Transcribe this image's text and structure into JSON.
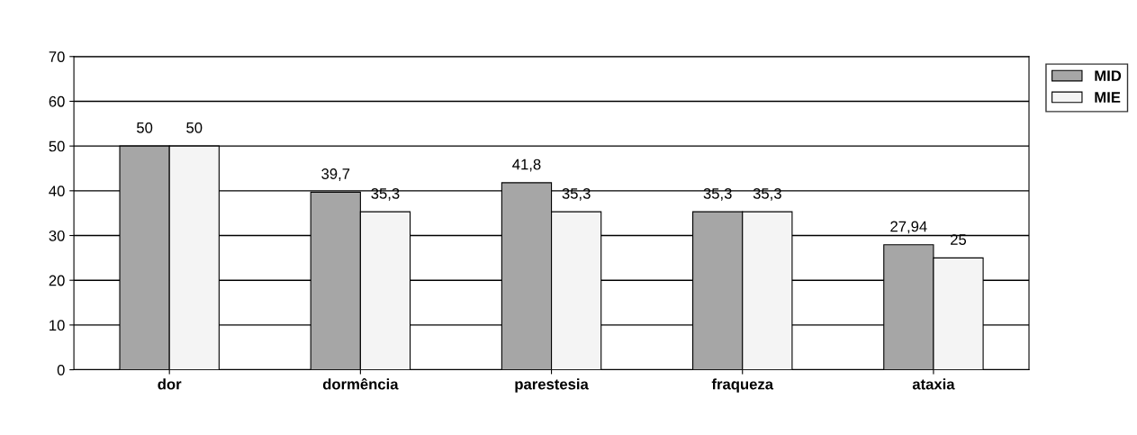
{
  "chart_data": {
    "type": "bar",
    "categories": [
      "dor",
      "dormência",
      "parestesia",
      "fraqueza",
      "ataxia"
    ],
    "series": [
      {
        "name": "MID",
        "color": "#a6a6a6",
        "values": [
          50,
          39.7,
          41.8,
          35.3,
          27.94
        ],
        "value_labels": [
          "50",
          "39,7",
          "41,8",
          "35,3",
          "27,94"
        ]
      },
      {
        "name": "MIE",
        "color": "#f4f4f4",
        "values": [
          50,
          35.3,
          35.3,
          35.3,
          25
        ],
        "value_labels": [
          "50",
          "35,3",
          "35,3",
          "35,3",
          "25"
        ]
      }
    ],
    "ylim": [
      0,
      70
    ],
    "yticks": [
      0,
      10,
      20,
      30,
      40,
      50,
      60,
      70
    ],
    "grid": "y",
    "legend": "right"
  }
}
